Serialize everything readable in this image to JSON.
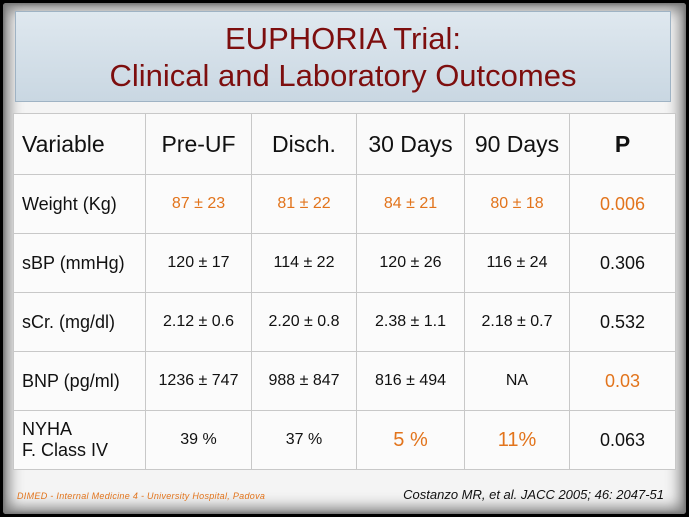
{
  "title": {
    "line1": "EUPHORIA Trial:",
    "line2": "Clinical and Laboratory Outcomes"
  },
  "table": {
    "headers": [
      "Variable",
      "Pre-UF",
      "Disch.",
      "30 Days",
      "90 Days",
      "P"
    ],
    "rows": [
      {
        "variable": "Weight (Kg)",
        "cells": [
          "87 ±  23",
          "81 ± 22",
          "84 ± 21",
          "80 ±  18"
        ],
        "p": "0.006"
      },
      {
        "variable": "sBP (mmHg)",
        "cells": [
          "120 ± 17",
          "114 ± 22",
          "120 ± 26",
          "116 ±  24"
        ],
        "p": "0.306"
      },
      {
        "variable": "sCr. (mg/dl)",
        "cells": [
          "2.12 ± 0.6",
          "2.20 ± 0.8",
          "2.38 ±  1.1",
          "2.18 ± 0.7"
        ],
        "p": "0.532"
      },
      {
        "variable": "BNP (pg/ml)",
        "cells": [
          "1236 ± 747",
          "988 ±  847",
          "816 ±  494",
          "NA"
        ],
        "p": "0.03"
      },
      {
        "variable_line1": "NYHA",
        "variable_line2": "F. Class IV",
        "cells": [
          "39 %",
          "37 %",
          "5 %",
          "11%"
        ],
        "p": "0.063"
      }
    ]
  },
  "footer": {
    "affiliation": "DIMED - Internal Medicine 4 - University Hospital, Padova",
    "citation": "Costanzo MR, et al. JACC 2005; 46: 2047-51"
  },
  "colors": {
    "title": "#7d0e0e",
    "highlight": "#e2741c"
  }
}
